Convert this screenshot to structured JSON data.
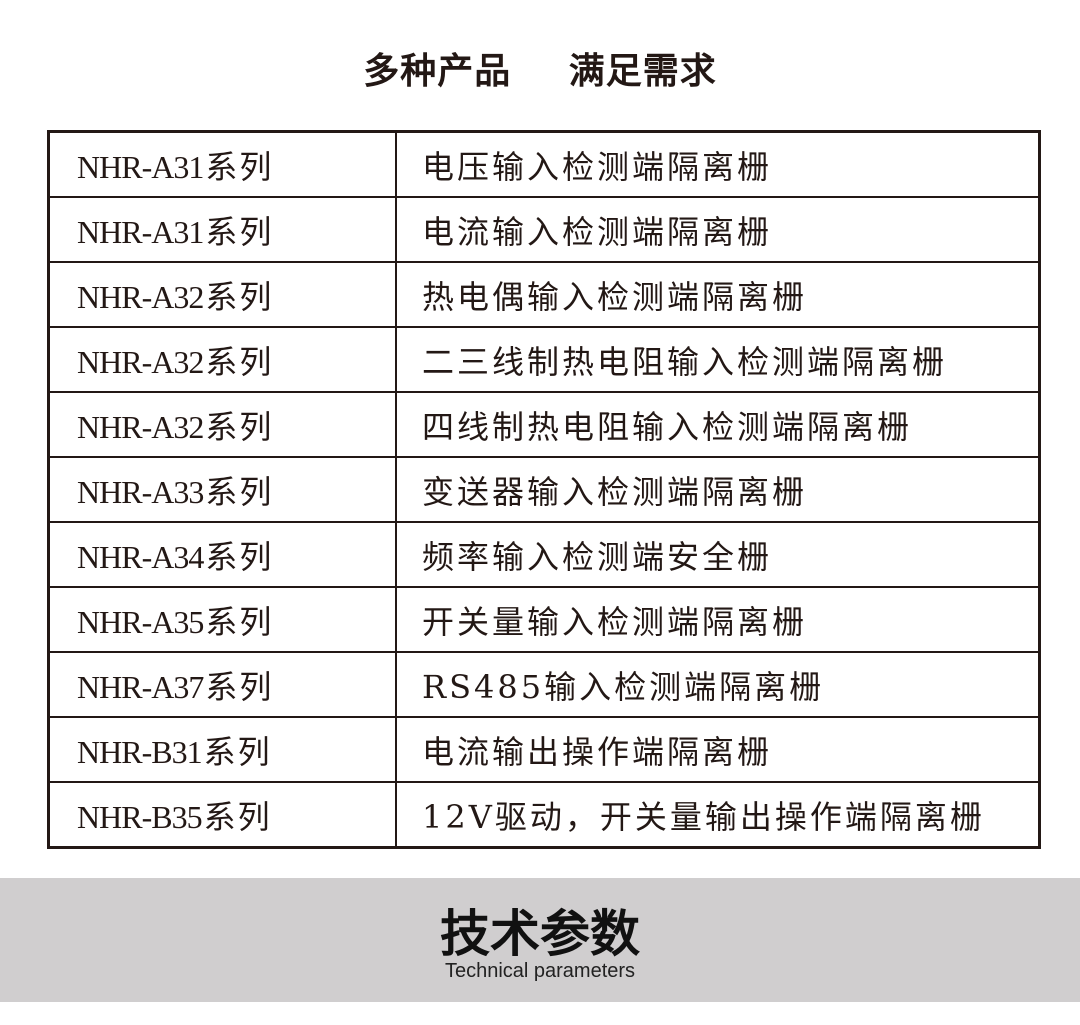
{
  "header": {
    "title_left": "多种产品",
    "title_right": "满足需求"
  },
  "table": {
    "rows": [
      {
        "model": "NHR-A31",
        "suffix": "系列",
        "desc": "电压输入检测端隔离栅"
      },
      {
        "model": "NHR-A31",
        "suffix": "系列",
        "desc": "电流输入检测端隔离栅"
      },
      {
        "model": "NHR-A32",
        "suffix": "系列",
        "desc": "热电偶输入检测端隔离栅"
      },
      {
        "model": "NHR-A32",
        "suffix": "系列",
        "desc": "二三线制热电阻输入检测端隔离栅"
      },
      {
        "model": "NHR-A32",
        "suffix": "系列",
        "desc": "四线制热电阻输入检测端隔离栅"
      },
      {
        "model": "NHR-A33",
        "suffix": "系列",
        "desc": "变送器输入检测端隔离栅"
      },
      {
        "model": "NHR-A34",
        "suffix": "系列",
        "desc": "频率输入检测端安全栅"
      },
      {
        "model": "NHR-A35",
        "suffix": "系列",
        "desc": "开关量输入检测端隔离栅"
      },
      {
        "model": "NHR-A37",
        "suffix": "系列",
        "desc": "RS485输入检测端隔离栅"
      },
      {
        "model": "NHR-B31",
        "suffix": "系列",
        "desc": "电流输出操作端隔离栅"
      },
      {
        "model": "NHR-B35",
        "suffix": "系列",
        "desc": "12V驱动，开关量输出操作端隔离栅"
      }
    ]
  },
  "section": {
    "title": "技术参数",
    "subtitle": "Technical parameters"
  }
}
